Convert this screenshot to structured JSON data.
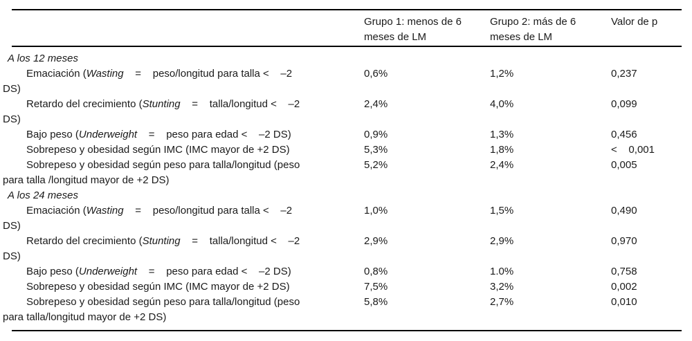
{
  "table": {
    "columns": [
      {
        "label": ""
      },
      {
        "label": "Grupo 1: menos de 6\nmeses de LM"
      },
      {
        "label": "Grupo 2: más de 6\nmeses de LM"
      },
      {
        "label": "Valor de p"
      }
    ],
    "sections": [
      {
        "title": "A los 12 meses",
        "rows": [
          {
            "label_parts": [
              {
                "text": "Emaciación (",
                "italic": false
              },
              {
                "text": "Wasting",
                "italic": true
              },
              {
                "text": "    =    peso/longitud para talla <    –2\nDS)",
                "italic": false
              }
            ],
            "group1": "0,6%",
            "group2": "1,2%",
            "p_value": "0,237"
          },
          {
            "label_parts": [
              {
                "text": "Retardo del crecimiento (",
                "italic": false
              },
              {
                "text": "Stunting",
                "italic": true
              },
              {
                "text": "    =    talla/longitud <    –2\nDS)",
                "italic": false
              }
            ],
            "group1": "2,4%",
            "group2": "4,0%",
            "p_value": "0,099"
          },
          {
            "label_parts": [
              {
                "text": "Bajo peso (",
                "italic": false
              },
              {
                "text": "Underweight",
                "italic": true
              },
              {
                "text": "    =    peso para edad <    –2 DS)",
                "italic": false
              }
            ],
            "group1": "0,9%",
            "group2": "1,3%",
            "p_value": "0,456"
          },
          {
            "label_parts": [
              {
                "text": "Sobrepeso y obesidad según IMC (IMC mayor de +2 DS)",
                "italic": false
              }
            ],
            "group1": "5,3%",
            "group2": "1,8%",
            "p_value": "<    0,001"
          },
          {
            "label_parts": [
              {
                "text": "Sobrepeso y obesidad según peso para talla/longitud (peso\npara talla /longitud mayor de +2 DS)",
                "italic": false
              }
            ],
            "group1": "5,2%",
            "group2": "2,4%",
            "p_value": "0,005"
          }
        ]
      },
      {
        "title": "A los 24 meses",
        "rows": [
          {
            "label_parts": [
              {
                "text": "Emaciación (",
                "italic": false
              },
              {
                "text": "Wasting",
                "italic": true
              },
              {
                "text": "    =    peso/longitud para talla <    –2\nDS)",
                "italic": false
              }
            ],
            "group1": "1,0%",
            "group2": "1,5%",
            "p_value": "0,490"
          },
          {
            "label_parts": [
              {
                "text": "Retardo del crecimiento (",
                "italic": false
              },
              {
                "text": "Stunting",
                "italic": true
              },
              {
                "text": "    =    talla/longitud <    –2\nDS)",
                "italic": false
              }
            ],
            "group1": "2,9%",
            "group2": "2,9%",
            "p_value": "0,970"
          },
          {
            "label_parts": [
              {
                "text": "Bajo peso (",
                "italic": false
              },
              {
                "text": "Underweight",
                "italic": true
              },
              {
                "text": "    =    peso para edad <    –2 DS)",
                "italic": false
              }
            ],
            "group1": "0,8%",
            "group2": "1.0%",
            "p_value": "0,758"
          },
          {
            "label_parts": [
              {
                "text": "Sobrepeso y obesidad según IMC (IMC mayor de +2 DS)",
                "italic": false
              }
            ],
            "group1": "7,5%",
            "group2": "3,2%",
            "p_value": "0,002"
          },
          {
            "label_parts": [
              {
                "text": "Sobrepeso y obesidad según peso para talla/longitud (peso\npara talla/longitud mayor de +2 DS)",
                "italic": false
              }
            ],
            "group1": "5,8%",
            "group2": "2,7%",
            "p_value": "0,010"
          }
        ]
      }
    ]
  }
}
